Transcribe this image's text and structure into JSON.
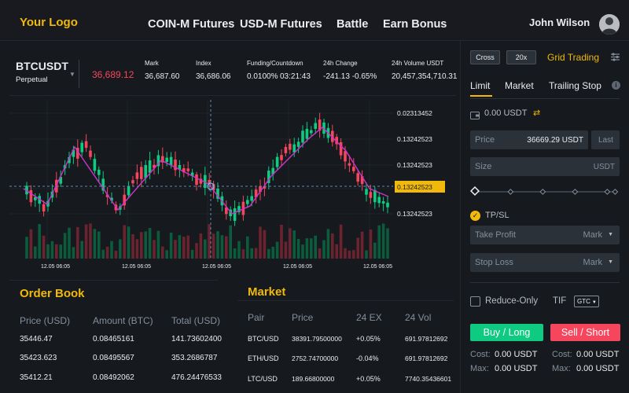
{
  "header": {
    "logo": "Your Logo",
    "nav": [
      "COIN-M Futures",
      "USD-M Futures",
      "Battle",
      "Earn Bonus"
    ],
    "user_name": "John Wilson"
  },
  "ticker": {
    "symbol": "BTCUSDT",
    "contract": "Perpetual",
    "last_price": "36,689.12",
    "stats": [
      {
        "label": "Mark",
        "value": "36,687.60"
      },
      {
        "label": "Index",
        "value": "36,686.06"
      },
      {
        "label": "Funding/Countdown",
        "value_a": "0.0100%",
        "value_b": "03:21:43"
      },
      {
        "label": "24h Change",
        "value": "-241.13 -0.65%"
      },
      {
        "label": "24h Volume USDT",
        "value": "20,457,354,710.31"
      }
    ]
  },
  "chart": {
    "price_labels": [
      "0.02313452",
      "0.13242523",
      "0.13242523",
      "0.13242523",
      "0.13242523"
    ],
    "time_labels": [
      "12.05 06:05",
      "12.05 06:05",
      "12.05 06:05",
      "12.05 06:05",
      "12.05 06:05"
    ],
    "colors": {
      "up": "#0ecb81",
      "down": "#f6465d",
      "ma": "#cc33cc",
      "current": "#f0b90b"
    }
  },
  "order_book": {
    "title": "Order Book",
    "headers": [
      "Price (USD)",
      "Amount (BTC)",
      "Total (USD)"
    ],
    "rows": [
      [
        "35446.47",
        "0.08465161",
        "141.73602400"
      ],
      [
        "35423.623",
        "0.08495567",
        "353.2686787"
      ],
      [
        "35412.21",
        "0.08492062",
        "476.24476533"
      ]
    ]
  },
  "market": {
    "title": "Market",
    "headers": [
      "Pair",
      "Price",
      "24 EX",
      "24 Vol"
    ],
    "rows": [
      {
        "pair": "BTC/USD",
        "price": "38391.79500000",
        "change": "+0.05%",
        "vol": "691.97812692",
        "dir": "up"
      },
      {
        "pair": "ETH/USD",
        "price": "2752.74700000",
        "change": "-0.04%",
        "vol": "691.97812692",
        "dir": "down"
      },
      {
        "pair": "LTC/USD",
        "price": "189.66800000",
        "change": "+0.05%",
        "vol": "7740.35436601",
        "dir": "up"
      }
    ]
  },
  "order_panel": {
    "margin_mode": "Cross",
    "leverage": "20x",
    "grid_trading": "Grid Trading",
    "tabs": [
      "Limit",
      "Market",
      "Trailing Stop"
    ],
    "balance": "0.00 USDT",
    "price_label": "Price",
    "price_value": "36669.29 USDT",
    "last_label": "Last",
    "size_label": "Size",
    "size_unit": "USDT",
    "tpsl_label": "TP/SL",
    "take_profit": "Take Profit",
    "stop_loss": "Stop Loss",
    "mark_label": "Mark",
    "reduce_only": "Reduce-Only",
    "tif_label": "TIF",
    "tif_value": "GTC",
    "buy_label": "Buy / Long",
    "sell_label": "Sell / Short",
    "cost_label": "Cost:",
    "max_label": "Max:",
    "buy_cost": "0.00 USDT",
    "buy_max": "0.00 USDT",
    "sell_cost": "0.00 USDT",
    "sell_max": "0.00 USDT"
  }
}
